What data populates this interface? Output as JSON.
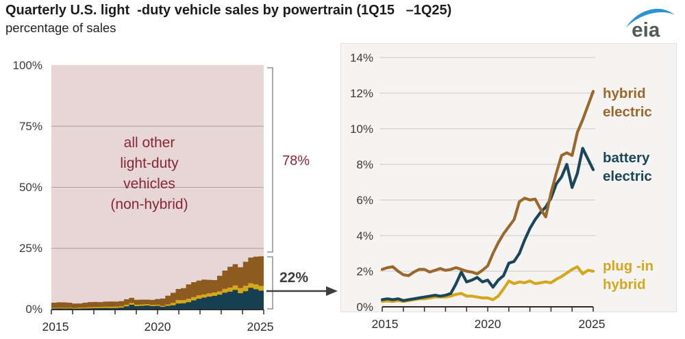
{
  "header": {
    "title": "Quarterly U.S. light  -duty vehicle sales by powertrain (1Q15   –1Q25)",
    "subtitle": "percentage of sales",
    "logo_text": "eia"
  },
  "colors": {
    "hybrid_line": "#9c672a",
    "hybrid_area": "#8d5b1f",
    "battery_line": "#1b4558",
    "battery_area": "#173f52",
    "plugin_line": "#d4a71c",
    "plugin_area": "#d4a71c",
    "other_area": "#e7d6d6",
    "maroon_text": "#8a2533",
    "axis": "#2b2b2b",
    "bracket_gray": "#8f8f8f",
    "annotation_dark": "#3d3d3d",
    "panel_bg": "#f5f4f2"
  },
  "chart_data": {
    "type": "combo",
    "title": "Quarterly U.S. light-duty vehicle sales by powertrain (1Q15–1Q25)",
    "ylabel": "percentage of sales",
    "frequency": "quarterly",
    "x_range": [
      "1Q15",
      "1Q25"
    ],
    "n_points": 41,
    "x_tick_labels": [
      "2015",
      "2020",
      "2025"
    ],
    "series": [
      {
        "name": "battery electric",
        "color": "#1b4558",
        "area_color": "#173f52",
        "values": [
          0.4,
          0.45,
          0.4,
          0.45,
          0.35,
          0.4,
          0.45,
          0.5,
          0.55,
          0.6,
          0.65,
          0.6,
          0.65,
          0.75,
          1.3,
          1.95,
          1.4,
          1.5,
          1.65,
          1.4,
          1.5,
          1.1,
          1.5,
          1.75,
          2.45,
          2.55,
          3.0,
          3.75,
          4.4,
          4.9,
          5.3,
          5.6,
          6.1,
          6.9,
          7.3,
          8.0,
          6.7,
          7.5,
          8.9,
          8.3,
          7.7
        ]
      },
      {
        "name": "plug-in hybrid",
        "color": "#d4a71c",
        "area_color": "#d4a71c",
        "values": [
          0.3,
          0.33,
          0.3,
          0.35,
          0.3,
          0.35,
          0.4,
          0.45,
          0.45,
          0.5,
          0.55,
          0.55,
          0.55,
          0.6,
          0.7,
          0.75,
          0.6,
          0.6,
          0.55,
          0.5,
          0.5,
          0.4,
          0.6,
          1.0,
          1.45,
          1.3,
          1.4,
          1.35,
          1.45,
          1.3,
          1.35,
          1.4,
          1.35,
          1.55,
          1.7,
          1.9,
          2.1,
          2.25,
          1.85,
          2.05,
          2.0
        ]
      },
      {
        "name": "hybrid electric",
        "color": "#9c672a",
        "area_color": "#8d5b1f",
        "values": [
          2.1,
          2.2,
          2.25,
          2.0,
          1.8,
          1.75,
          1.95,
          2.1,
          2.1,
          1.95,
          2.05,
          2.15,
          2.05,
          2.1,
          2.2,
          2.1,
          2.0,
          1.95,
          1.85,
          2.05,
          2.3,
          3.0,
          3.6,
          4.1,
          4.5,
          4.9,
          5.9,
          6.1,
          6.0,
          6.05,
          5.5,
          5.05,
          6.4,
          7.5,
          8.5,
          8.65,
          8.5,
          9.8,
          10.5,
          11.3,
          12.1
        ]
      }
    ],
    "left_chart": {
      "type": "stacked-area",
      "ylim": [
        0,
        100
      ],
      "yticks": [
        "100%",
        "75%",
        "50%",
        "25%",
        "0%"
      ],
      "other_series_label_lines": [
        "all other",
        "light-duty",
        "vehicles",
        "(non-hybrid)"
      ],
      "other_share_label": "78%",
      "electrified_share_label": "22%"
    },
    "right_chart": {
      "type": "line",
      "ylim": [
        0,
        14
      ],
      "yticks": [
        "14%",
        "12%",
        "10%",
        "8%",
        "6%",
        "4%",
        "2%",
        "0%"
      ],
      "series_labels": {
        "hybrid": [
          "hybrid",
          "electric"
        ],
        "battery": [
          "battery",
          "electric"
        ],
        "plugin": [
          "plug -in",
          "hybrid"
        ]
      }
    }
  }
}
